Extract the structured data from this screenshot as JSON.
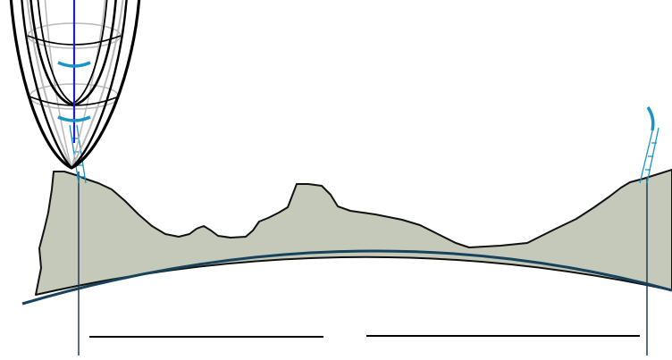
{
  "colors": {
    "terrain_fill": "#c4c9b9",
    "terrain_stroke": "#111111",
    "earth_curve": "#16425b",
    "vertical_lines": "#1f3f52",
    "wireframe_black": "#000000",
    "wireframe_gray": "#b8b8b8",
    "axis_blue": "#2020c0",
    "marker_cyan": "#1a93c6",
    "baseline": "#000000",
    "background": "#ffffff"
  },
  "scene": {
    "paraboloid": {
      "icon": "paraboloid-wireframe",
      "rings": 2
    },
    "left_station": {
      "markers": 2,
      "has_ladder": true
    },
    "right_station": {
      "markers": 1,
      "has_ladder": true
    },
    "baselines": 2
  }
}
